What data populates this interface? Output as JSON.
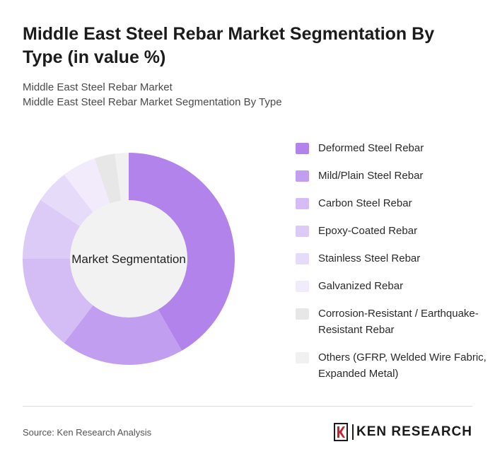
{
  "title": "Middle East Steel Rebar Market Segmentation By Type (in value %)",
  "subtitles": [
    "Middle East Steel Rebar Market",
    "Middle East Steel Rebar Market Segmentation By Type"
  ],
  "chart_data": {
    "type": "pie",
    "variant": "donut",
    "center_label": "Market Segmentation",
    "categories": [
      "Deformed Steel Rebar",
      "Mild/Plain Steel Rebar",
      "Carbon Steel Rebar",
      "Epoxy-Coated Rebar",
      "Stainless Steel Rebar",
      "Galvanized Rebar",
      "Corrosion-Resistant / Earthquake-Resistant Rebar",
      "Others (GFRP, Welded Wire Fabric, Expanded Metal)"
    ],
    "values": [
      40,
      18,
      14,
      9,
      5,
      5,
      3,
      2
    ],
    "colors": [
      "#b284eb",
      "#c29ef0",
      "#d4bdf5",
      "#dccbf6",
      "#e6dbf9",
      "#f1ebfc",
      "#e7e7e7",
      "#f1f1f1"
    ],
    "legend_position": "right"
  },
  "footer": {
    "source": "Source: Ken Research Analysis",
    "logo_text": "KEN RESEARCH"
  }
}
